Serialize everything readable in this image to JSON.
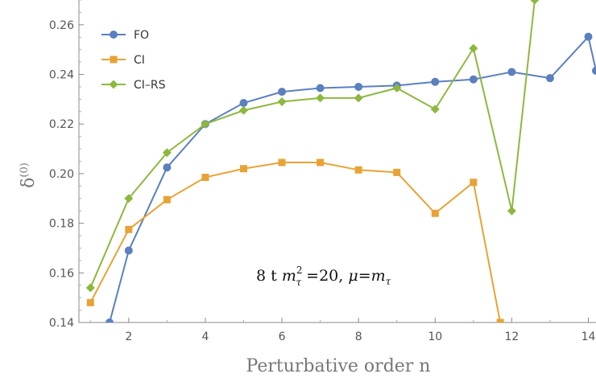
{
  "chart_data": {
    "type": "line",
    "xlabel": "Perturbative order n",
    "ylabel": "δ(0)",
    "ylabel_main": "δ",
    "ylabel_sup": "(0)",
    "xlim": [
      0.7,
      14.2
    ],
    "ylim": [
      0.14,
      0.27
    ],
    "xticks": [
      2,
      4,
      6,
      8,
      10,
      12,
      14
    ],
    "yticks": [
      0.14,
      0.16,
      0.18,
      0.2,
      0.22,
      0.24,
      0.26
    ],
    "ytick_labels": [
      "0.14",
      "0.16",
      "0.18",
      "0.20",
      "0.22",
      "0.24",
      "0.26"
    ],
    "legend_position": "top-left",
    "grid": false,
    "annotation": {
      "prefix": "8 t ",
      "m": "m",
      "m_sup": "2",
      "m_sub": "τ",
      "mid": " =20, ",
      "mu": "μ",
      "eq": "=",
      "m2": "m",
      "m2_sub": "τ"
    },
    "series": [
      {
        "name": "FO",
        "color": "#5b7fbf",
        "marker": "circle",
        "x": [
          1.5,
          2,
          3,
          4,
          5,
          6,
          7,
          8,
          9,
          10,
          11,
          12,
          13,
          14,
          14.2
        ],
        "y": [
          0.14,
          0.169,
          0.2025,
          0.22,
          0.2285,
          0.233,
          0.2345,
          0.235,
          0.2355,
          0.237,
          0.238,
          0.241,
          0.2385,
          0.2552,
          0.2415
        ]
      },
      {
        "name": "CI",
        "color": "#e8a335",
        "marker": "square",
        "x": [
          1,
          2,
          3,
          4,
          5,
          6,
          7,
          8,
          9,
          10,
          11,
          11.7
        ],
        "y": [
          0.148,
          0.1775,
          0.1895,
          0.1985,
          0.202,
          0.2045,
          0.2045,
          0.2015,
          0.2005,
          0.184,
          0.1965,
          0.14
        ]
      },
      {
        "name": "CI–RS",
        "color": "#8db840",
        "marker": "diamond",
        "x": [
          1,
          2,
          3,
          4,
          5,
          6,
          7,
          8,
          9,
          10,
          11,
          12,
          12.6
        ],
        "y": [
          0.154,
          0.19,
          0.2085,
          0.22,
          0.2255,
          0.229,
          0.2305,
          0.2305,
          0.2345,
          0.226,
          0.2505,
          0.185,
          0.27
        ]
      }
    ]
  }
}
